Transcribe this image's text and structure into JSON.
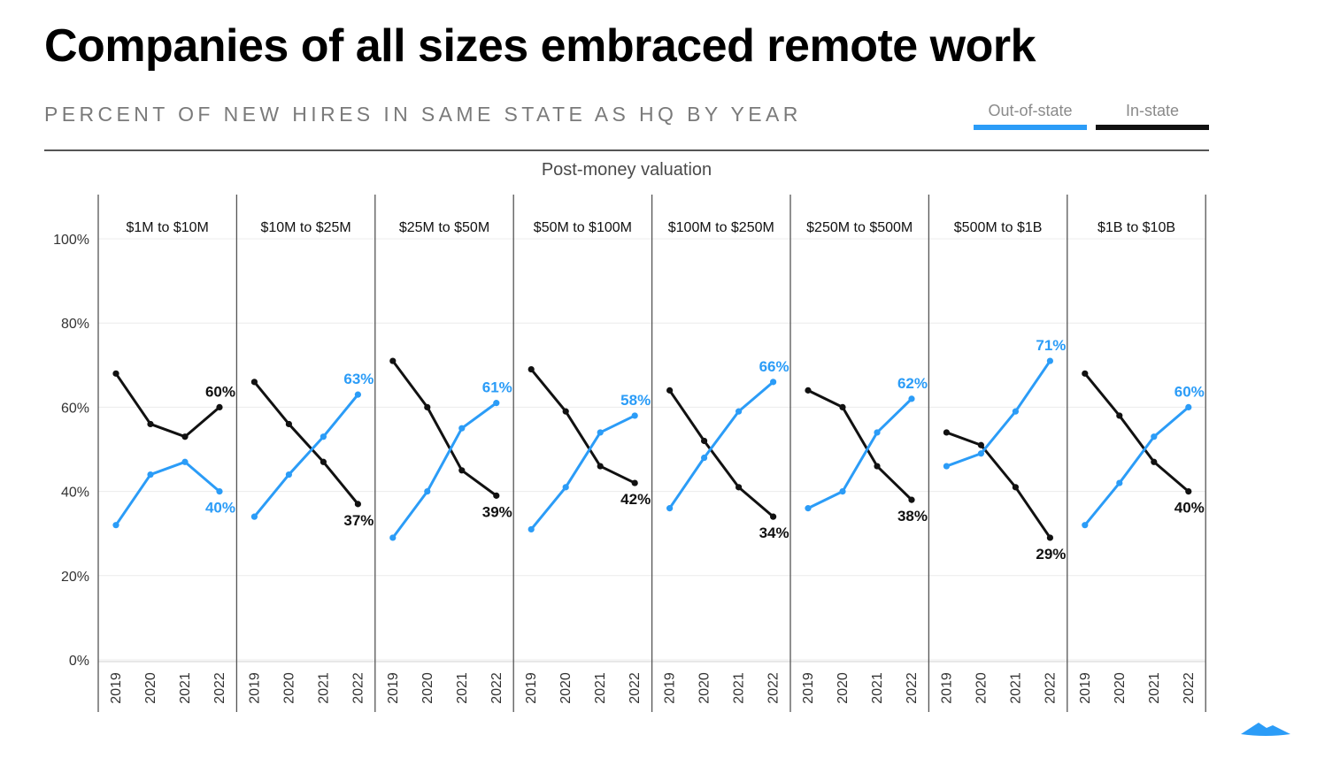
{
  "header": {
    "title": "Companies of all sizes embraced remote work",
    "subtitle": "PERCENT OF NEW HIRES IN SAME STATE AS HQ BY YEAR",
    "supertitle": "Post-money valuation"
  },
  "legend": {
    "out_label": "Out-of-state",
    "in_label": "In-state",
    "placement": "top-right"
  },
  "colors": {
    "out_of_state": "#2b9cf7",
    "in_state": "#111111",
    "grid": "#ececec",
    "divider": "#555555",
    "tick_text": "#333333",
    "logo": "#2b9cf7"
  },
  "icons": {
    "brand_logo": "mountain-logo-icon"
  },
  "chart_data": {
    "type": "line",
    "layout": "small-multiples",
    "x": [
      "2019",
      "2020",
      "2021",
      "2022"
    ],
    "ylim": [
      0,
      100
    ],
    "yticks": [
      0,
      20,
      40,
      60,
      80,
      100
    ],
    "ytick_labels": [
      "0%",
      "20%",
      "40%",
      "60%",
      "80%",
      "100%"
    ],
    "grid": true,
    "panels": [
      {
        "label": "$1M to $10M",
        "series": [
          {
            "name": "Out-of-state",
            "values": [
              32,
              44,
              47,
              40
            ],
            "end_label": "40%"
          },
          {
            "name": "In-state",
            "values": [
              68,
              56,
              53,
              60
            ],
            "end_label": "60%"
          }
        ]
      },
      {
        "label": "$10M to $25M",
        "series": [
          {
            "name": "Out-of-state",
            "values": [
              34,
              44,
              53,
              63
            ],
            "end_label": "63%"
          },
          {
            "name": "In-state",
            "values": [
              66,
              56,
              47,
              37
            ],
            "end_label": "37%"
          }
        ]
      },
      {
        "label": "$25M to $50M",
        "series": [
          {
            "name": "Out-of-state",
            "values": [
              29,
              40,
              55,
              61
            ],
            "end_label": "61%"
          },
          {
            "name": "In-state",
            "values": [
              71,
              60,
              45,
              39
            ],
            "end_label": "39%"
          }
        ]
      },
      {
        "label": "$50M to $100M",
        "series": [
          {
            "name": "Out-of-state",
            "values": [
              31,
              41,
              54,
              58
            ],
            "end_label": "58%"
          },
          {
            "name": "In-state",
            "values": [
              69,
              59,
              46,
              42
            ],
            "end_label": "42%"
          }
        ]
      },
      {
        "label": "$100M to $250M",
        "series": [
          {
            "name": "Out-of-state",
            "values": [
              36,
              48,
              59,
              66
            ],
            "end_label": "66%"
          },
          {
            "name": "In-state",
            "values": [
              64,
              52,
              41,
              34
            ],
            "end_label": "34%"
          }
        ]
      },
      {
        "label": "$250M to $500M",
        "series": [
          {
            "name": "Out-of-state",
            "values": [
              36,
              40,
              54,
              62
            ],
            "end_label": "62%"
          },
          {
            "name": "In-state",
            "values": [
              64,
              60,
              46,
              38
            ],
            "end_label": "38%"
          }
        ]
      },
      {
        "label": "$500M to $1B",
        "series": [
          {
            "name": "Out-of-state",
            "values": [
              46,
              49,
              59,
              71
            ],
            "end_label": "71%"
          },
          {
            "name": "In-state",
            "values": [
              54,
              51,
              41,
              29
            ],
            "end_label": "29%"
          }
        ]
      },
      {
        "label": "$1B to $10B",
        "series": [
          {
            "name": "Out-of-state",
            "values": [
              32,
              42,
              53,
              60
            ],
            "end_label": "60%"
          },
          {
            "name": "In-state",
            "values": [
              68,
              58,
              47,
              40
            ],
            "end_label": "40%"
          }
        ]
      }
    ]
  }
}
